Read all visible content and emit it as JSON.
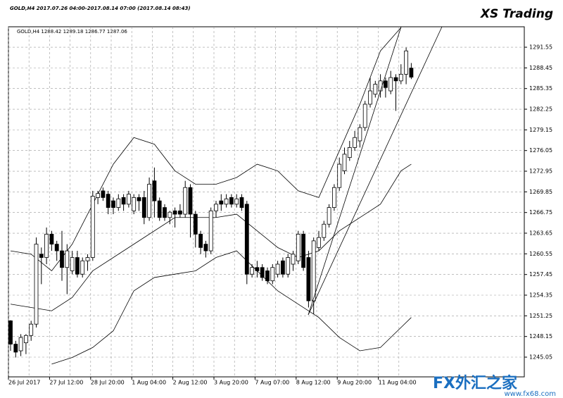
{
  "chart_data": {
    "type": "candlestick",
    "header": "GOLD,H4  2017.07.26 04:00-2017.08.14 07:00 (2017.08.14 08:43)",
    "brand": "XS Trading",
    "info": "GOLD,H4  1288.42 1289.18 1286.77 1287.06",
    "watermark": "FX外汇之家",
    "watermark_url": "www.fx68.com",
    "categories": [
      "26 Jul 2017",
      null,
      null,
      null,
      null,
      null,
      null,
      null,
      "27 Jul 12:00",
      null,
      null,
      null,
      null,
      null,
      null,
      null,
      "28 Jul 20:00",
      null,
      null,
      null,
      null,
      null,
      null,
      null,
      "1 Aug 04:00",
      null,
      null,
      null,
      null,
      null,
      null,
      null,
      "2 Aug 12:00",
      null,
      null,
      null,
      null,
      null,
      null,
      null,
      "3 Aug 20:00",
      null,
      null,
      null,
      null,
      null,
      null,
      null,
      "7 Aug 07:00",
      null,
      null,
      null,
      null,
      null,
      null,
      null,
      "8 Aug 12:00",
      null,
      null,
      null,
      null,
      null,
      null,
      null,
      "9 Aug 20:00",
      null,
      null,
      null,
      null,
      null,
      null,
      null,
      "11 Aug 04:00",
      null,
      null,
      null,
      null,
      null,
      null
    ],
    "open": [
      1250.5,
      1247,
      1246,
      1247.2,
      1248.3,
      1250,
      1260.5,
      1260,
      1263.5,
      1262,
      1261,
      1258.5,
      1258,
      1260,
      1257.5,
      1259.5,
      1260,
      1269,
      1270,
      1269.5,
      1268.5,
      1267.5,
      1269,
      1268,
      1267,
      1269,
      1269,
      1266,
      1271.5,
      1268.5,
      1267.5,
      1266,
      1267,
      1267,
      1266.5,
      1270.5,
      1266.5,
      1263.5,
      1262,
      1261,
      1267,
      1268.5,
      1268,
      1269,
      1268,
      1269,
      1268,
      1257.5,
      1258.5,
      1258.5,
      1258,
      1256.5,
      1257.5,
      1259.5,
      1257.5,
      1259,
      1259.5,
      1263.5,
      1260,
      1253.5,
      1261.5,
      1263,
      1265,
      1267.5,
      1270.5,
      1273,
      1275,
      1276.5,
      1277.5,
      1279.5,
      1283,
      1284.5,
      1285,
      1286.5,
      1285,
      1287,
      1286.5,
      1287.5,
      1288.42
    ],
    "high": [
      1250.6,
      1247.5,
      1248.5,
      1248.5,
      1250.5,
      1263,
      1261.5,
      1264.5,
      1264,
      1262.5,
      1264,
      1262,
      1261,
      1261,
      1260,
      1260.5,
      1270,
      1270,
      1270.5,
      1270,
      1269,
      1269.5,
      1269.5,
      1270,
      1269.5,
      1269.5,
      1270,
      1272,
      1273.5,
      1269,
      1268,
      1267,
      1267.5,
      1268,
      1271.5,
      1271,
      1267,
      1264,
      1262.5,
      1267.5,
      1268.5,
      1269.5,
      1269.5,
      1269.5,
      1269.5,
      1269.5,
      1268.5,
      1259,
      1259.5,
      1259,
      1258.5,
      1259,
      1259.5,
      1260,
      1260.5,
      1261,
      1264,
      1264,
      1261,
      1263,
      1264,
      1265.5,
      1268,
      1271,
      1275,
      1276.5,
      1277.5,
      1279,
      1280,
      1283.5,
      1287,
      1286.5,
      1287.5,
      1287,
      1288,
      1287.5,
      1289,
      1291.5,
      1289.18
    ],
    "low": [
      1246,
      1245,
      1245.2,
      1245.5,
      1247.5,
      1249.5,
      1256,
      1259,
      1261,
      1259.5,
      1256.5,
      1254.5,
      1257.5,
      1257,
      1257,
      1258,
      1259.5,
      1268,
      1268.5,
      1266.5,
      1266.5,
      1267,
      1267,
      1267.5,
      1266.5,
      1267,
      1265,
      1265.5,
      1266,
      1265.5,
      1265.5,
      1265,
      1264.5,
      1266,
      1266,
      1263,
      1261.5,
      1260.5,
      1260,
      1260.5,
      1266,
      1267,
      1267.5,
      1267.5,
      1267.5,
      1267,
      1256,
      1257,
      1257,
      1256.5,
      1256,
      1256,
      1257,
      1257,
      1257,
      1258,
      1259,
      1258,
      1252.5,
      1251.5,
      1261,
      1262.5,
      1264.5,
      1267,
      1270,
      1272.5,
      1274.5,
      1276,
      1276.5,
      1279,
      1282.5,
      1284,
      1284,
      1284,
      1284.5,
      1282,
      1286,
      1286,
      1286.77
    ],
    "close": [
      1247,
      1245.8,
      1248,
      1248.3,
      1250,
      1262,
      1260,
      1263.5,
      1262,
      1261,
      1258.5,
      1261,
      1260,
      1257.5,
      1259.5,
      1260,
      1269.2,
      1269.6,
      1269,
      1267.5,
      1267.5,
      1268.8,
      1268,
      1269.5,
      1269,
      1268.5,
      1266,
      1271,
      1268.5,
      1266,
      1266,
      1266.8,
      1266.5,
      1266.5,
      1270.5,
      1266.5,
      1263.5,
      1261.5,
      1261,
      1267,
      1268,
      1268,
      1268.8,
      1268,
      1268.8,
      1267.5,
      1257.5,
      1258.5,
      1258,
      1257,
      1256.5,
      1258.5,
      1259,
      1257.5,
      1260,
      1260.5,
      1263.5,
      1258.5,
      1253.5,
      1262.5,
      1263,
      1265,
      1267.5,
      1270.5,
      1274,
      1275.5,
      1276.5,
      1278,
      1279.5,
      1283,
      1285,
      1286,
      1286.5,
      1285.5,
      1287,
      1286.5,
      1287.5,
      1291,
      1287.06
    ],
    "up_color": "#ffffff",
    "down_color": "#000000",
    "bands": [
      {
        "x": [
          0,
          4,
          8,
          12,
          16,
          20,
          24,
          28,
          32,
          36,
          40,
          44,
          48,
          52,
          56,
          60,
          64,
          68,
          72,
          76
        ],
        "values": [
          1261,
          1260.5,
          1258,
          1262,
          1268,
          1274,
          1278,
          1277,
          1273,
          1271,
          1271,
          1272,
          1274,
          1273,
          1270,
          1269,
          1276,
          1283,
          1291,
          1294.5
        ]
      },
      {
        "x": [
          0,
          8,
          12,
          16,
          24,
          32,
          36,
          40,
          44,
          48,
          52,
          56,
          60,
          64,
          68,
          72,
          76,
          78
        ],
        "values": [
          1253,
          1252,
          1254,
          1258,
          1262,
          1266,
          1266,
          1266,
          1266.5,
          1264,
          1261.5,
          1260,
          1261,
          1264,
          1266,
          1268,
          1273,
          1274
        ]
      },
      {
        "x": [
          8,
          12,
          16,
          20,
          24,
          28,
          32,
          36,
          40,
          44,
          48,
          52,
          56,
          60,
          64,
          68,
          72,
          76,
          78
        ],
        "values": [
          1244,
          1245,
          1246.5,
          1249,
          1255,
          1257,
          1257.5,
          1258,
          1260,
          1261,
          1258,
          1255,
          1253,
          1251,
          1248,
          1246,
          1246.5,
          1249.5,
          1251
        ]
      }
    ],
    "ylim": [
      1242.09,
      1294.62
    ],
    "yticks": [
      1245.05,
      1248.15,
      1251.25,
      1254.35,
      1257.45,
      1260.55,
      1263.65,
      1266.75,
      1269.85,
      1272.95,
      1276.05,
      1279.15,
      1282.25,
      1285.35,
      1288.45,
      1291.55
    ],
    "grid": true
  }
}
